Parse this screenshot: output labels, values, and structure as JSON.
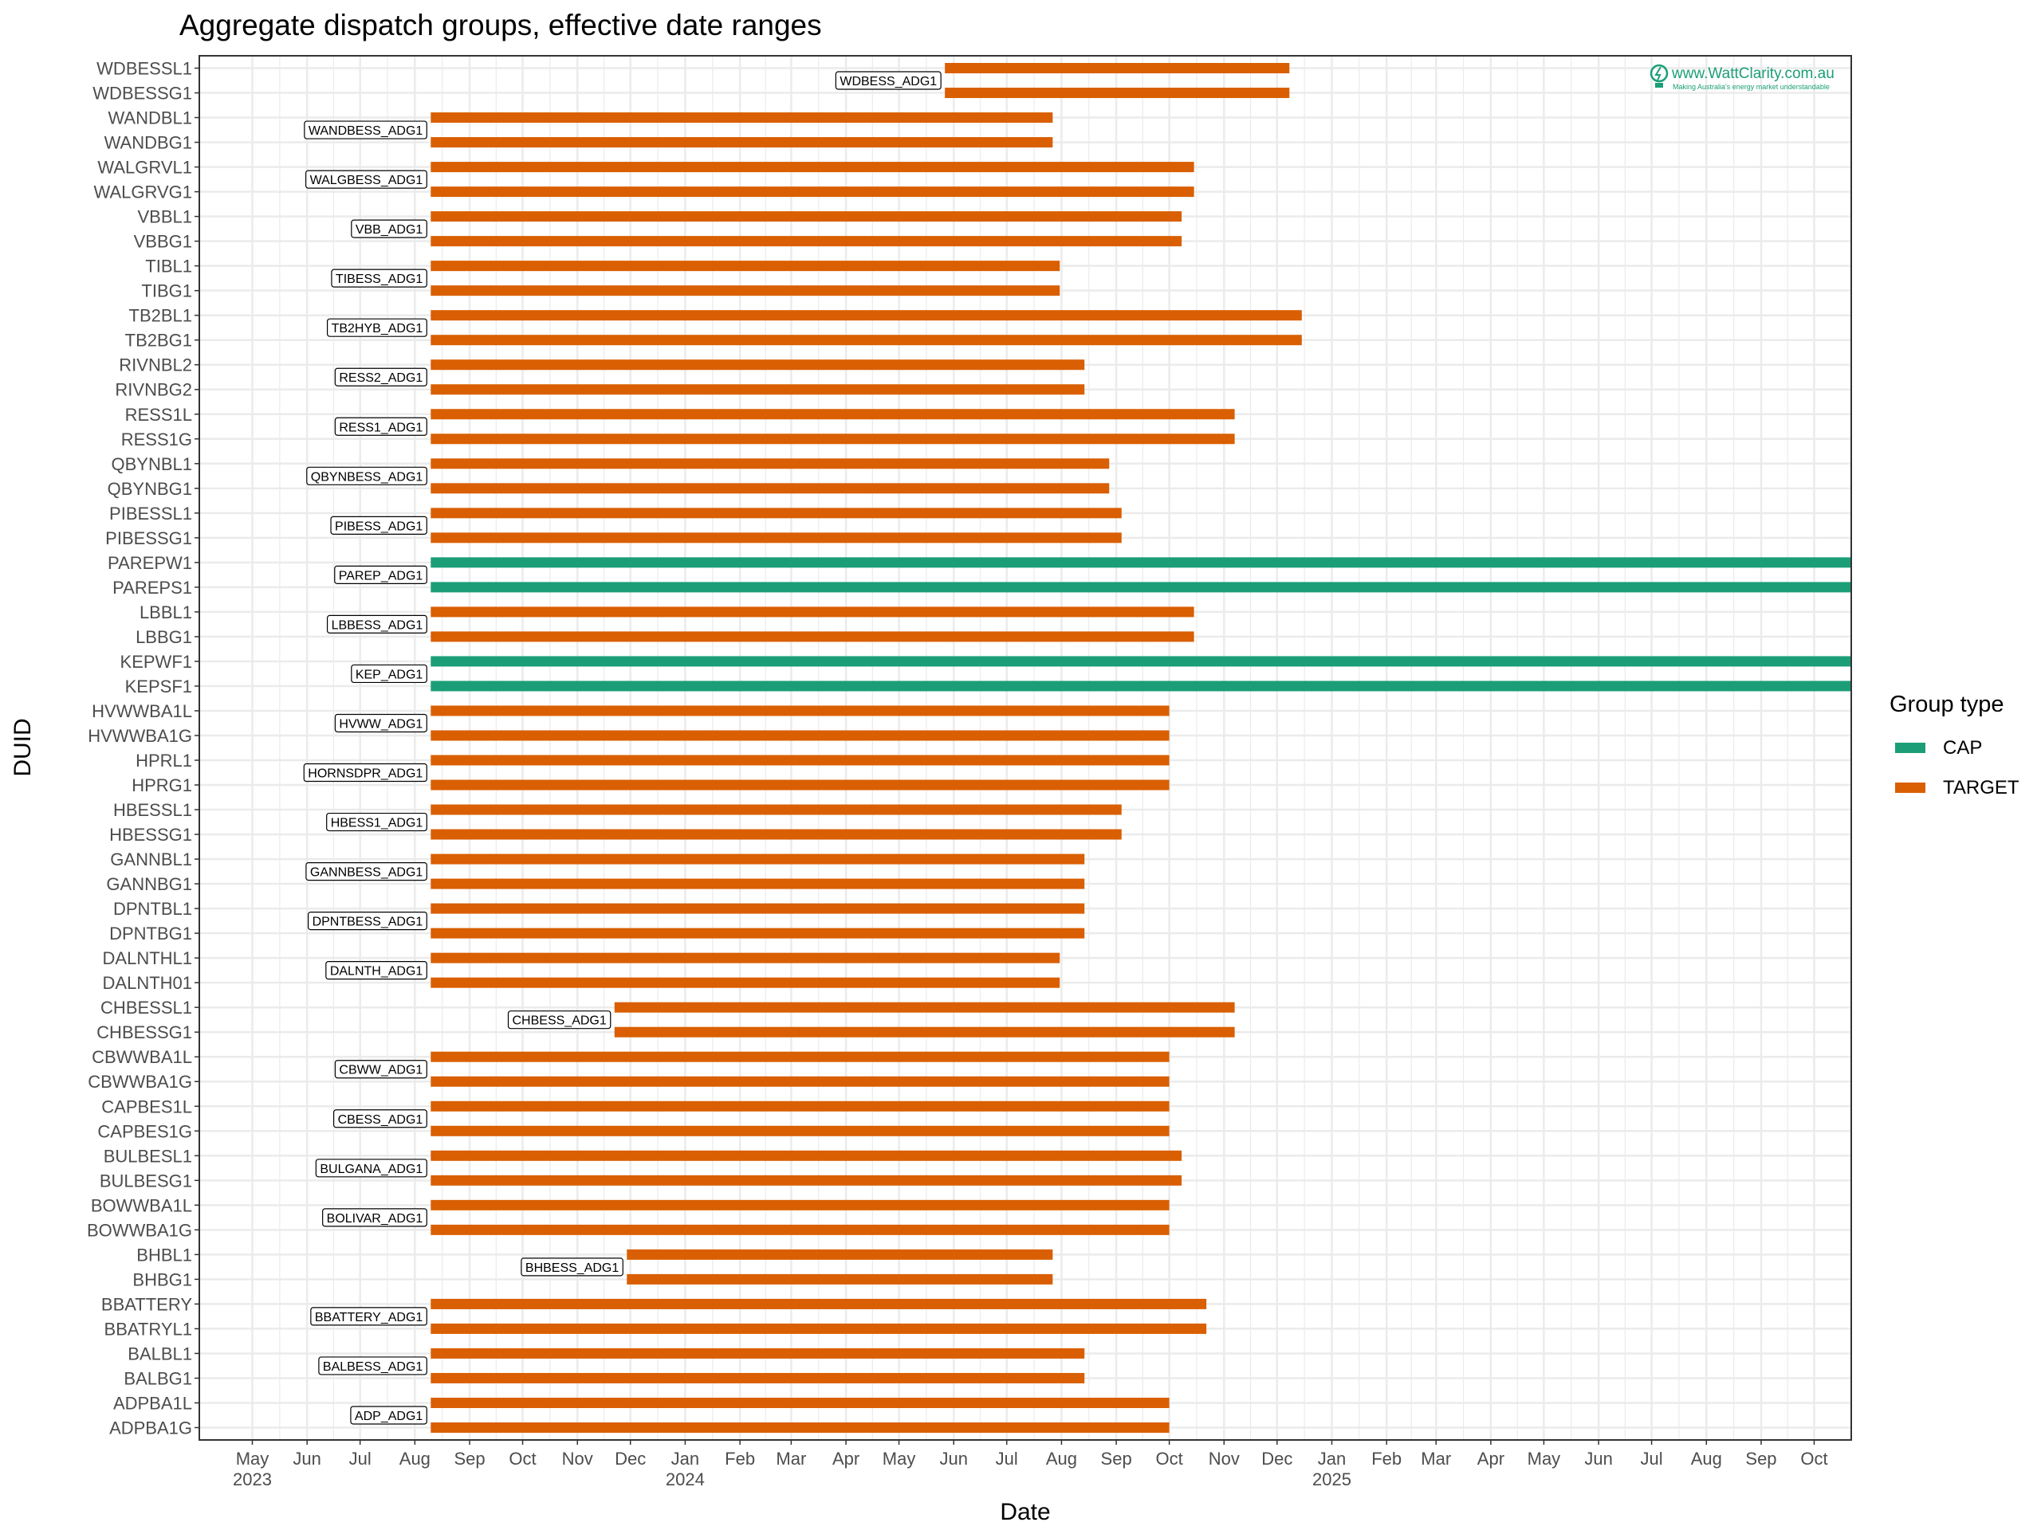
{
  "watermark": {
    "title": "www.WattClarity.com.au",
    "subtitle": "Making Australia's energy market understandable"
  },
  "colors": {
    "CAP": "#1b9e77",
    "TARGET": "#d95f02",
    "grid": "#ebebeb",
    "panel_border": "#333333"
  },
  "chart_data": {
    "type": "gantt",
    "title": "Aggregate dispatch groups, effective date ranges",
    "xlabel": "Date",
    "ylabel": "DUID",
    "legend_title": "Group type",
    "legend_position": "right",
    "legend": [
      "CAP",
      "TARGET"
    ],
    "xlim": [
      "2023-04-01",
      "2025-10-22"
    ],
    "x_ticks": [
      {
        "date": "2023-05-01",
        "label": "May",
        "year": "2023"
      },
      {
        "date": "2023-06-01",
        "label": "Jun",
        "year": ""
      },
      {
        "date": "2023-07-01",
        "label": "Jul",
        "year": ""
      },
      {
        "date": "2023-08-01",
        "label": "Aug",
        "year": ""
      },
      {
        "date": "2023-09-01",
        "label": "Sep",
        "year": ""
      },
      {
        "date": "2023-10-01",
        "label": "Oct",
        "year": ""
      },
      {
        "date": "2023-11-01",
        "label": "Nov",
        "year": ""
      },
      {
        "date": "2023-12-01",
        "label": "Dec",
        "year": ""
      },
      {
        "date": "2024-01-01",
        "label": "Jan",
        "year": "2024"
      },
      {
        "date": "2024-02-01",
        "label": "Feb",
        "year": ""
      },
      {
        "date": "2024-03-01",
        "label": "Mar",
        "year": ""
      },
      {
        "date": "2024-04-01",
        "label": "Apr",
        "year": ""
      },
      {
        "date": "2024-05-01",
        "label": "May",
        "year": ""
      },
      {
        "date": "2024-06-01",
        "label": "Jun",
        "year": ""
      },
      {
        "date": "2024-07-01",
        "label": "Jul",
        "year": ""
      },
      {
        "date": "2024-08-01",
        "label": "Aug",
        "year": ""
      },
      {
        "date": "2024-09-01",
        "label": "Sep",
        "year": ""
      },
      {
        "date": "2024-10-01",
        "label": "Oct",
        "year": ""
      },
      {
        "date": "2024-11-01",
        "label": "Nov",
        "year": ""
      },
      {
        "date": "2024-12-01",
        "label": "Dec",
        "year": ""
      },
      {
        "date": "2025-01-01",
        "label": "Jan",
        "year": "2025"
      },
      {
        "date": "2025-02-01",
        "label": "Feb",
        "year": ""
      },
      {
        "date": "2025-03-01",
        "label": "Mar",
        "year": ""
      },
      {
        "date": "2025-04-01",
        "label": "Apr",
        "year": ""
      },
      {
        "date": "2025-05-01",
        "label": "May",
        "year": ""
      },
      {
        "date": "2025-06-01",
        "label": "Jun",
        "year": ""
      },
      {
        "date": "2025-07-01",
        "label": "Jul",
        "year": ""
      },
      {
        "date": "2025-08-01",
        "label": "Aug",
        "year": ""
      },
      {
        "date": "2025-09-01",
        "label": "Sep",
        "year": ""
      },
      {
        "date": "2025-10-01",
        "label": "Oct",
        "year": ""
      }
    ],
    "groups": [
      {
        "name": "WDBESS_ADG1",
        "type": "TARGET",
        "start": "2024-05-27",
        "end": "2024-12-08",
        "duids": [
          "WDBESSL1",
          "WDBESSG1"
        ]
      },
      {
        "name": "WANDBESS_ADG1",
        "type": "TARGET",
        "start": "2023-08-10",
        "end": "2024-07-27",
        "duids": [
          "WANDBL1",
          "WANDBG1"
        ]
      },
      {
        "name": "WALGBESS_ADG1",
        "type": "TARGET",
        "start": "2023-08-10",
        "end": "2024-10-15",
        "duids": [
          "WALGRVL1",
          "WALGRVG1"
        ]
      },
      {
        "name": "VBB_ADG1",
        "type": "TARGET",
        "start": "2023-08-10",
        "end": "2024-10-08",
        "duids": [
          "VBBL1",
          "VBBG1"
        ]
      },
      {
        "name": "TIBESS_ADG1",
        "type": "TARGET",
        "start": "2023-08-10",
        "end": "2024-07-31",
        "duids": [
          "TIBL1",
          "TIBG1"
        ]
      },
      {
        "name": "TB2HYB_ADG1",
        "type": "TARGET",
        "start": "2023-08-10",
        "end": "2024-12-15",
        "duids": [
          "TB2BL1",
          "TB2BG1"
        ]
      },
      {
        "name": "RESS2_ADG1",
        "type": "TARGET",
        "start": "2023-08-10",
        "end": "2024-08-14",
        "duids": [
          "RIVNBL2",
          "RIVNBG2"
        ]
      },
      {
        "name": "RESS1_ADG1",
        "type": "TARGET",
        "start": "2023-08-10",
        "end": "2024-11-07",
        "duids": [
          "RESS1L",
          "RESS1G"
        ]
      },
      {
        "name": "QBYNBESS_ADG1",
        "type": "TARGET",
        "start": "2023-08-10",
        "end": "2024-08-28",
        "duids": [
          "QBYNBL1",
          "QBYNBG1"
        ]
      },
      {
        "name": "PIBESS_ADG1",
        "type": "TARGET",
        "start": "2023-08-10",
        "end": "2024-09-04",
        "duids": [
          "PIBESSL1",
          "PIBESSG1"
        ]
      },
      {
        "name": "PAREP_ADG1",
        "type": "CAP",
        "start": "2023-08-10",
        "end": "2025-10-22",
        "duids": [
          "PAREPW1",
          "PAREPS1"
        ]
      },
      {
        "name": "LBBESS_ADG1",
        "type": "TARGET",
        "start": "2023-08-10",
        "end": "2024-10-15",
        "duids": [
          "LBBL1",
          "LBBG1"
        ]
      },
      {
        "name": "KEP_ADG1",
        "type": "CAP",
        "start": "2023-08-10",
        "end": "2025-10-22",
        "duids": [
          "KEPWF1",
          "KEPSF1"
        ]
      },
      {
        "name": "HVWW_ADG1",
        "type": "TARGET",
        "start": "2023-08-10",
        "end": "2024-10-01",
        "duids": [
          "HVWWBA1L",
          "HVWWBA1G"
        ]
      },
      {
        "name": "HORNSDPR_ADG1",
        "type": "TARGET",
        "start": "2023-08-10",
        "end": "2024-10-01",
        "duids": [
          "HPRL1",
          "HPRG1"
        ]
      },
      {
        "name": "HBESS1_ADG1",
        "type": "TARGET",
        "start": "2023-08-10",
        "end": "2024-09-04",
        "duids": [
          "HBESSL1",
          "HBESSG1"
        ]
      },
      {
        "name": "GANNBESS_ADG1",
        "type": "TARGET",
        "start": "2023-08-10",
        "end": "2024-08-14",
        "duids": [
          "GANNBL1",
          "GANNBG1"
        ]
      },
      {
        "name": "DPNTBESS_ADG1",
        "type": "TARGET",
        "start": "2023-08-10",
        "end": "2024-08-14",
        "duids": [
          "DPNTBL1",
          "DPNTBG1"
        ]
      },
      {
        "name": "DALNTH_ADG1",
        "type": "TARGET",
        "start": "2023-08-10",
        "end": "2024-07-31",
        "duids": [
          "DALNTHL1",
          "DALNTH01"
        ]
      },
      {
        "name": "CHBESS_ADG1",
        "type": "TARGET",
        "start": "2023-11-22",
        "end": "2024-11-07",
        "duids": [
          "CHBESSL1",
          "CHBESSG1"
        ]
      },
      {
        "name": "CBWW_ADG1",
        "type": "TARGET",
        "start": "2023-08-10",
        "end": "2024-10-01",
        "duids": [
          "CBWWBA1L",
          "CBWWBA1G"
        ]
      },
      {
        "name": "CBESS_ADG1",
        "type": "TARGET",
        "start": "2023-08-10",
        "end": "2024-10-01",
        "duids": [
          "CAPBES1L",
          "CAPBES1G"
        ]
      },
      {
        "name": "BULGANA_ADG1",
        "type": "TARGET",
        "start": "2023-08-10",
        "end": "2024-10-08",
        "duids": [
          "BULBESL1",
          "BULBESG1"
        ]
      },
      {
        "name": "BOLIVAR_ADG1",
        "type": "TARGET",
        "start": "2023-08-10",
        "end": "2024-10-01",
        "duids": [
          "BOWWBA1L",
          "BOWWBA1G"
        ]
      },
      {
        "name": "BHBESS_ADG1",
        "type": "TARGET",
        "start": "2023-11-29",
        "end": "2024-07-27",
        "duids": [
          "BHBL1",
          "BHBG1"
        ]
      },
      {
        "name": "BBATTERY_ADG1",
        "type": "TARGET",
        "start": "2023-08-10",
        "end": "2024-10-22",
        "duids": [
          "BBATTERY",
          "BBATRYL1"
        ]
      },
      {
        "name": "BALBESS_ADG1",
        "type": "TARGET",
        "start": "2023-08-10",
        "end": "2024-08-14",
        "duids": [
          "BALBL1",
          "BALBG1"
        ]
      },
      {
        "name": "ADP_ADG1",
        "type": "TARGET",
        "start": "2023-08-10",
        "end": "2024-10-01",
        "duids": [
          "ADPBA1L",
          "ADPBA1G"
        ]
      }
    ]
  }
}
